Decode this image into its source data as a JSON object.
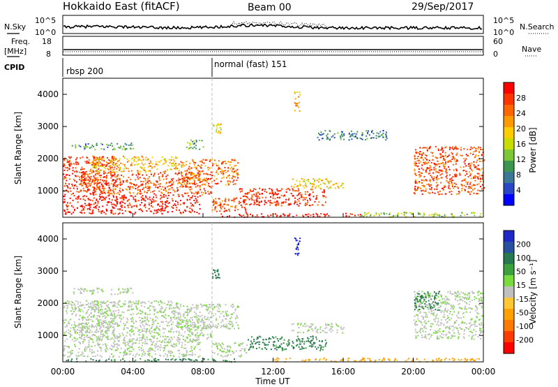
{
  "header": {
    "station": "Hokkaido East (fitACF)",
    "beam": "Beam 00",
    "date": "29/Sep/2017"
  },
  "strip_panels": {
    "nsky_label": "N.Sky",
    "nsky_ticks": [
      "10^5",
      "10^0"
    ],
    "nsearch_label": "N.Search",
    "nsearch_ticks": [
      "10^5",
      "10^0"
    ],
    "freq_label": "Freq.",
    "freq_unit": "[MHz]",
    "freq_ticks": [
      "18",
      "8"
    ],
    "nave_label": "Nave",
    "nave_ticks": [
      "60",
      "0"
    ],
    "cpid_label": "CPID",
    "cpid_segments": [
      {
        "label": "rbsp 200",
        "start_hour": 0.0
      },
      {
        "label": "normal (fast) 151",
        "start_hour": 8.5
      }
    ]
  },
  "chart_data": [
    {
      "type": "heatmap",
      "title": "",
      "xlabel": "Time UT",
      "ylabel": "Slant Range [km]",
      "xlim": [
        0,
        24
      ],
      "ylim": [
        180,
        4500
      ],
      "x_ticks": [
        "00:00",
        "04:00",
        "08:00",
        "12:00",
        "16:00",
        "20:00",
        "00:00"
      ],
      "y_ticks": [
        1000,
        2000,
        3000,
        4000
      ],
      "colorbar": {
        "label": "Power [dB]",
        "ticks": [
          "28",
          "24",
          "20",
          "16",
          "12",
          "8",
          "4"
        ],
        "colors": [
          "#ff0000",
          "#ff3300",
          "#ff6600",
          "#ff9900",
          "#ffcc00",
          "#c8dc00",
          "#7cc836",
          "#3c9650",
          "#3c7896",
          "#2846c8",
          "#0000ff"
        ]
      },
      "regions": [
        {
          "t0": 0.0,
          "t1": 7.8,
          "r0": 300,
          "r1": 900,
          "value": 30
        },
        {
          "t0": 0.0,
          "t1": 3.0,
          "r0": 900,
          "r1": 2100,
          "value": 28
        },
        {
          "t0": 1.0,
          "t1": 8.5,
          "r0": 900,
          "r1": 1600,
          "value": 26
        },
        {
          "t0": 1.5,
          "t1": 6.5,
          "r0": 1600,
          "r1": 2100,
          "value": 20
        },
        {
          "t0": 6.5,
          "t1": 10.0,
          "r0": 1200,
          "r1": 2000,
          "value": 24
        },
        {
          "t0": 8.5,
          "t1": 10.5,
          "r0": 350,
          "r1": 800,
          "value": 26
        },
        {
          "t0": 10.0,
          "t1": 15.0,
          "r0": 550,
          "r1": 1100,
          "value": 28
        },
        {
          "t0": 13.0,
          "t1": 16.0,
          "r0": 1100,
          "r1": 1400,
          "value": 18
        },
        {
          "t0": 0.5,
          "t1": 4.0,
          "r0": 2300,
          "r1": 2500,
          "value": 10
        },
        {
          "t0": 7.0,
          "t1": 8.0,
          "r0": 2300,
          "r1": 2600,
          "value": 12
        },
        {
          "t0": 8.5,
          "t1": 9.0,
          "r0": 2800,
          "r1": 3100,
          "value": 18
        },
        {
          "t0": 14.5,
          "t1": 18.5,
          "r0": 2600,
          "r1": 2900,
          "value": 8
        },
        {
          "t0": 13.2,
          "t1": 13.5,
          "r0": 3500,
          "r1": 4100,
          "value": 20
        },
        {
          "t0": 20.0,
          "t1": 24.0,
          "r0": 900,
          "r1": 2400,
          "value": 26
        },
        {
          "t0": 9.0,
          "t1": 17.0,
          "r0": 200,
          "r1": 320,
          "value": 30
        },
        {
          "t0": 17.0,
          "t1": 24.0,
          "r0": 200,
          "r1": 350,
          "value": 14
        }
      ]
    },
    {
      "type": "heatmap",
      "title": "",
      "xlabel": "Time UT",
      "ylabel": "Slant Range [km]",
      "xlim": [
        0,
        24
      ],
      "ylim": [
        180,
        4500
      ],
      "x_ticks": [
        "00:00",
        "04:00",
        "08:00",
        "12:00",
        "16:00",
        "20:00",
        "00:00"
      ],
      "y_ticks": [
        1000,
        2000,
        3000,
        4000
      ],
      "colorbar": {
        "label": "Velocity [m s⁻¹]",
        "ticks": [
          "200",
          "100",
          "50",
          "15",
          "-15",
          "-50",
          "-100",
          "-200"
        ],
        "colors": [
          "#1e28c8",
          "#2850a0",
          "#287850",
          "#3ca03c",
          "#78dc3c",
          "#c0c0c0",
          "#ffc832",
          "#ffa000",
          "#ff7800",
          "#ff3c00",
          "#ff0000"
        ]
      },
      "regions": [
        {
          "t0": 0.0,
          "t1": 7.8,
          "r0": 350,
          "r1": 900,
          "value": 0
        },
        {
          "t0": 0.0,
          "t1": 3.0,
          "r0": 900,
          "r1": 2100,
          "value": 0
        },
        {
          "t0": 1.0,
          "t1": 8.5,
          "r0": 900,
          "r1": 1600,
          "value": 0
        },
        {
          "t0": 1.5,
          "t1": 6.5,
          "r0": 1600,
          "r1": 2100,
          "value": 0
        },
        {
          "t0": 6.5,
          "t1": 10.0,
          "r0": 1200,
          "r1": 2000,
          "value": 0
        },
        {
          "t0": 8.5,
          "t1": 10.5,
          "r0": 350,
          "r1": 800,
          "value": 0
        },
        {
          "t0": 10.5,
          "t1": 15.0,
          "r0": 550,
          "r1": 1000,
          "value": 40
        },
        {
          "t0": 0.0,
          "t1": 10.0,
          "r0": 200,
          "r1": 300,
          "value": 40
        },
        {
          "t0": 13.0,
          "t1": 16.0,
          "r0": 1100,
          "r1": 1400,
          "value": 0
        },
        {
          "t0": 0.5,
          "t1": 4.0,
          "r0": 2300,
          "r1": 2500,
          "value": 0
        },
        {
          "t0": 8.5,
          "t1": 9.0,
          "r0": 2800,
          "r1": 3100,
          "value": 60
        },
        {
          "t0": 13.2,
          "t1": 13.5,
          "r0": 3500,
          "r1": 4100,
          "value": 200
        },
        {
          "t0": 20.0,
          "t1": 24.0,
          "r0": 900,
          "r1": 2400,
          "value": 0
        },
        {
          "t0": 20.0,
          "t1": 21.5,
          "r0": 1800,
          "r1": 2400,
          "value": 40
        },
        {
          "t0": 12.0,
          "t1": 24.0,
          "r0": 200,
          "r1": 320,
          "value": -40
        }
      ]
    }
  ]
}
